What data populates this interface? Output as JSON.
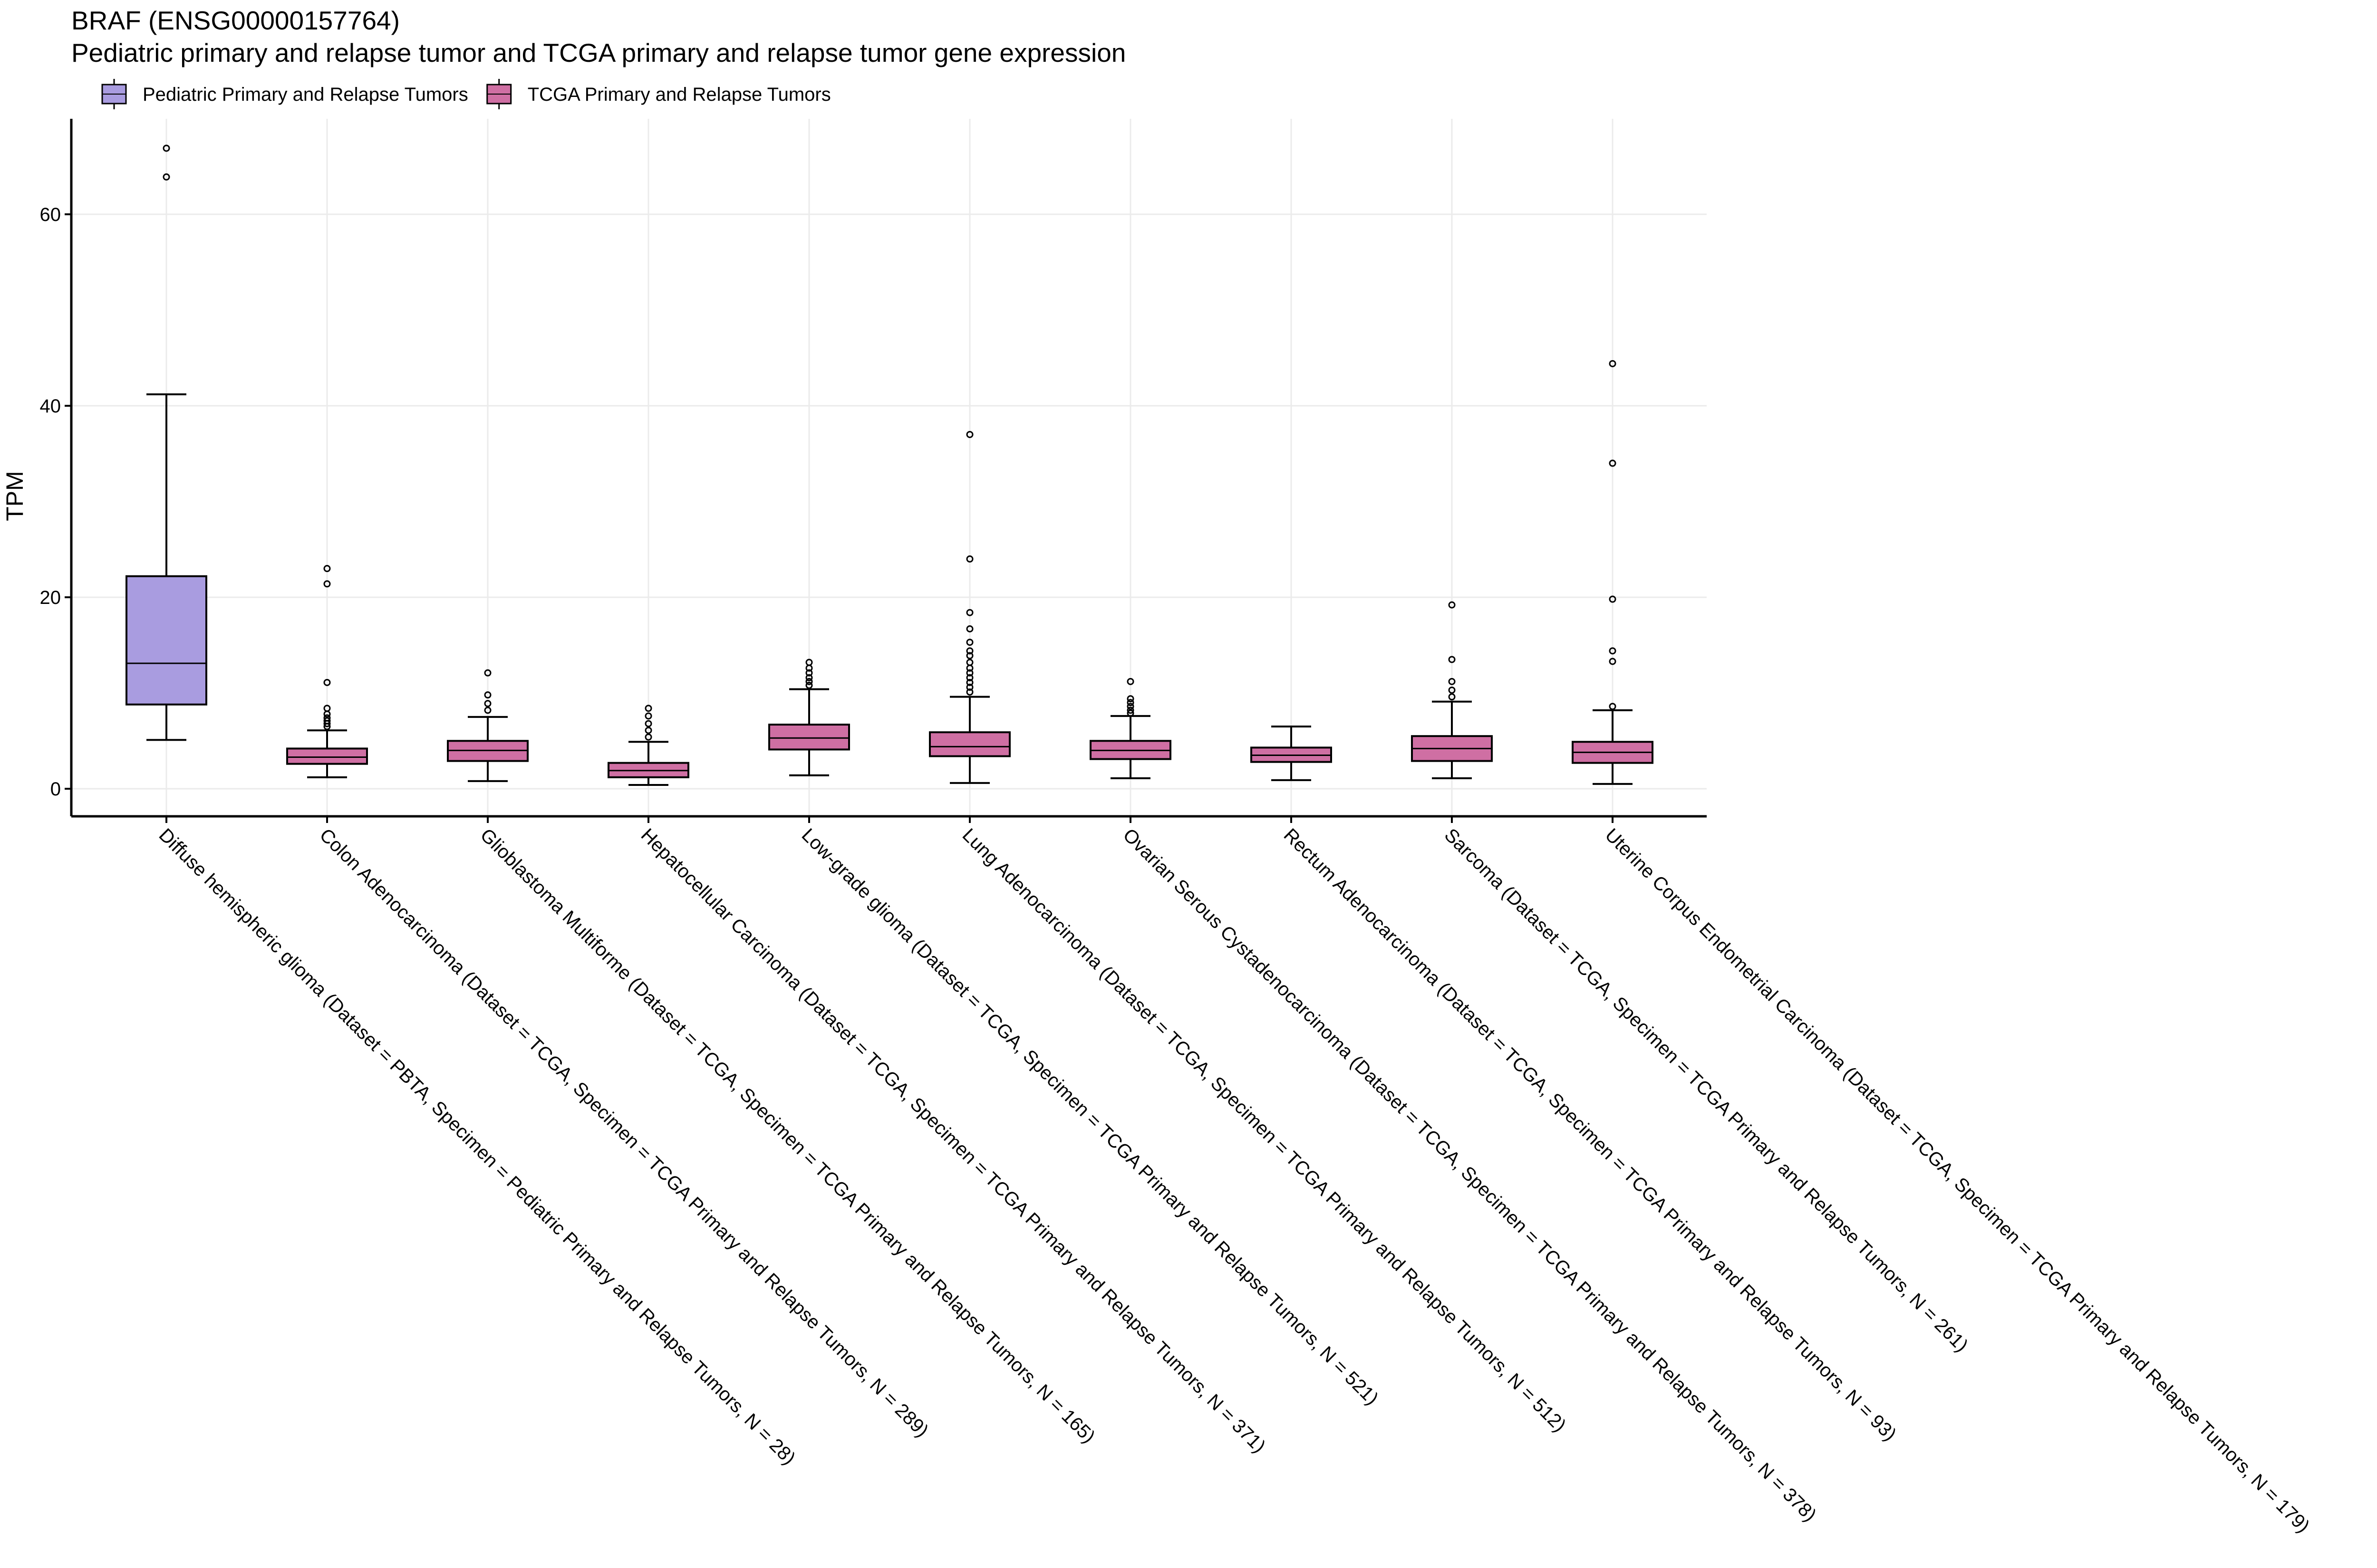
{
  "title": "BRAF (ENSG00000157764)",
  "subtitle": "Pediatric primary and relapse tumor and TCGA primary and relapse tumor gene expression",
  "colors": {
    "pediatric": "#a99ce0",
    "tcga": "#cf6fa3",
    "grid": "#ebebeb",
    "axis": "#000000"
  },
  "chart_data": {
    "type": "box",
    "ylabel": "TPM",
    "xlabel": "",
    "ylim": [
      -3,
      70
    ],
    "yticks": [
      0,
      20,
      40,
      60
    ],
    "grid": true,
    "legend_position": "top-left",
    "legend": [
      {
        "name": "Pediatric Primary and Relapse Tumors",
        "color_key": "pediatric"
      },
      {
        "name": "TCGA Primary and Relapse Tumors",
        "color_key": "tcga"
      }
    ],
    "categories": [
      {
        "label": "Diffuse hemispheric glioma  (Dataset = PBTA, Specimen = Pediatric Primary and Relapse Tumors, N = 28)",
        "group": "pediatric",
        "whisker_low": 5.1,
        "q1": 8.8,
        "median": 13.1,
        "q3": 22.2,
        "whisker_high": 41.2,
        "outliers": [
          63.9,
          66.9
        ]
      },
      {
        "label": "Colon Adenocarcinoma  (Dataset = TCGA, Specimen = TCGA Primary and Relapse Tumors, N = 289)",
        "group": "tcga",
        "whisker_low": 1.2,
        "q1": 2.6,
        "median": 3.3,
        "q3": 4.2,
        "whisker_high": 6.1,
        "outliers": [
          6.5,
          6.8,
          7.1,
          7.4,
          7.8,
          8.4,
          11.1,
          21.4,
          23.0
        ]
      },
      {
        "label": "Glioblastoma Multiforme  (Dataset = TCGA, Specimen = TCGA Primary and Relapse Tumors, N = 165)",
        "group": "tcga",
        "whisker_low": 0.8,
        "q1": 2.9,
        "median": 4.0,
        "q3": 5.0,
        "whisker_high": 7.5,
        "outliers": [
          8.2,
          8.9,
          9.8,
          12.1
        ]
      },
      {
        "label": "Hepatocellular Carcinoma  (Dataset = TCGA, Specimen = TCGA Primary and Relapse Tumors, N = 371)",
        "group": "tcga",
        "whisker_low": 0.4,
        "q1": 1.2,
        "median": 1.9,
        "q3": 2.7,
        "whisker_high": 4.9,
        "outliers": [
          5.4,
          6.1,
          6.8,
          7.6,
          8.4
        ]
      },
      {
        "label": "Low-grade glioma  (Dataset = TCGA, Specimen = TCGA Primary and Relapse Tumors, N = 521)",
        "group": "tcga",
        "whisker_low": 1.4,
        "q1": 4.1,
        "median": 5.3,
        "q3": 6.7,
        "whisker_high": 10.4,
        "outliers": [
          10.8,
          11.2,
          11.6,
          12.1,
          12.6,
          13.2
        ]
      },
      {
        "label": "Lung Adenocarcinoma  (Dataset = TCGA, Specimen = TCGA Primary and Relapse Tumors, N = 512)",
        "group": "tcga",
        "whisker_low": 0.6,
        "q1": 3.4,
        "median": 4.4,
        "q3": 5.9,
        "whisker_high": 9.6,
        "outliers": [
          10.1,
          10.6,
          11.1,
          11.6,
          12.1,
          12.6,
          13.2,
          13.9,
          14.4,
          15.3,
          16.7,
          18.4,
          24.0,
          37.0
        ]
      },
      {
        "label": "Ovarian Serous Cystadenocarcinoma  (Dataset = TCGA, Specimen = TCGA Primary and Relapse Tumors, N = 378)",
        "group": "tcga",
        "whisker_low": 1.1,
        "q1": 3.1,
        "median": 4.0,
        "q3": 5.0,
        "whisker_high": 7.6,
        "outliers": [
          7.9,
          8.2,
          8.6,
          9.0,
          9.4,
          11.2
        ]
      },
      {
        "label": "Rectum Adenocarcinoma  (Dataset = TCGA, Specimen = TCGA Primary and Relapse Tumors, N = 93)",
        "group": "tcga",
        "whisker_low": 0.9,
        "q1": 2.8,
        "median": 3.5,
        "q3": 4.3,
        "whisker_high": 6.5,
        "outliers": []
      },
      {
        "label": "Sarcoma  (Dataset = TCGA, Specimen = TCGA Primary and Relapse Tumors, N = 261)",
        "group": "tcga",
        "whisker_low": 1.1,
        "q1": 2.9,
        "median": 4.2,
        "q3": 5.5,
        "whisker_high": 9.1,
        "outliers": [
          9.6,
          10.3,
          11.2,
          13.5,
          19.2
        ]
      },
      {
        "label": "Uterine Corpus Endometrial Carcinoma  (Dataset = TCGA, Specimen = TCGA Primary and Relapse Tumors, N = 179)",
        "group": "tcga",
        "whisker_low": 0.5,
        "q1": 2.7,
        "median": 3.8,
        "q3": 4.9,
        "whisker_high": 8.2,
        "outliers": [
          8.6,
          13.3,
          14.4,
          19.8,
          34.0,
          44.4
        ]
      }
    ]
  }
}
